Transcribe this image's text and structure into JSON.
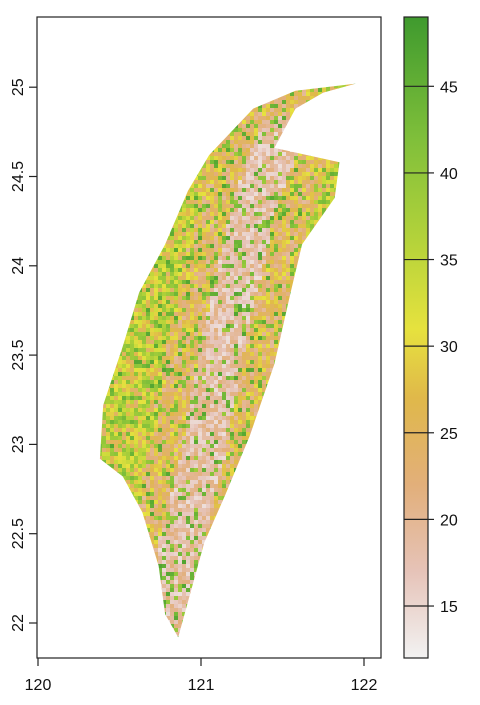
{
  "chart_data": {
    "type": "heatmap",
    "title": "",
    "xlabel": "",
    "ylabel": "",
    "xlim": [
      120.0,
      122.1
    ],
    "ylim": [
      21.8,
      25.4
    ],
    "x_ticks": [
      {
        "value": 120,
        "label": "120"
      },
      {
        "value": 121,
        "label": "121"
      },
      {
        "value": 122,
        "label": "122"
      }
    ],
    "y_ticks": [
      {
        "value": 22,
        "label": "22"
      },
      {
        "value": 22.5,
        "label": "22.5"
      },
      {
        "value": 23,
        "label": "23"
      },
      {
        "value": 23.5,
        "label": "23.5"
      },
      {
        "value": 24,
        "label": "24"
      },
      {
        "value": 24.5,
        "label": "24.5"
      },
      {
        "value": 25,
        "label": "25"
      }
    ],
    "colorbar": {
      "min": 12,
      "max": 49,
      "ticks": [
        {
          "value": 15,
          "label": "15"
        },
        {
          "value": 20,
          "label": "20"
        },
        {
          "value": 25,
          "label": "25"
        },
        {
          "value": 30,
          "label": "30"
        },
        {
          "value": 35,
          "label": "35"
        },
        {
          "value": 40,
          "label": "40"
        },
        {
          "value": 45,
          "label": "45"
        }
      ],
      "stops": [
        {
          "value": 12,
          "color": "#f2f2f2"
        },
        {
          "value": 17,
          "color": "#e6c3b8"
        },
        {
          "value": 22,
          "color": "#e2af7a"
        },
        {
          "value": 27,
          "color": "#e0b84a"
        },
        {
          "value": 31,
          "color": "#e6e23e"
        },
        {
          "value": 36,
          "color": "#b5d33a"
        },
        {
          "value": 42,
          "color": "#7fbf3a"
        },
        {
          "value": 49,
          "color": "#3f9a2e"
        }
      ]
    },
    "region_outline": [
      [
        121.95,
        25.02
      ],
      [
        121.75,
        24.97
      ],
      [
        121.58,
        24.88
      ],
      [
        121.45,
        24.66
      ],
      [
        121.85,
        24.58
      ],
      [
        121.82,
        24.38
      ],
      [
        121.62,
        24.12
      ],
      [
        121.55,
        23.85
      ],
      [
        121.45,
        23.45
      ],
      [
        121.3,
        23.05
      ],
      [
        121.15,
        22.72
      ],
      [
        121.02,
        22.45
      ],
      [
        120.92,
        22.12
      ],
      [
        120.86,
        21.92
      ],
      [
        120.78,
        22.05
      ],
      [
        120.74,
        22.32
      ],
      [
        120.64,
        22.62
      ],
      [
        120.52,
        22.82
      ],
      [
        120.38,
        22.92
      ],
      [
        120.4,
        23.22
      ],
      [
        120.52,
        23.55
      ],
      [
        120.62,
        23.85
      ],
      [
        120.78,
        24.12
      ],
      [
        120.92,
        24.42
      ],
      [
        121.05,
        24.62
      ],
      [
        121.32,
        24.88
      ],
      [
        121.58,
        24.98
      ]
    ],
    "ridge_axis": [
      [
        120.86,
        22.05
      ],
      [
        120.88,
        22.45
      ],
      [
        121.0,
        22.88
      ],
      [
        121.1,
        23.4
      ],
      [
        121.22,
        23.92
      ],
      [
        121.34,
        24.36
      ],
      [
        121.48,
        24.72
      ]
    ],
    "ridge_value": 14,
    "flank_value": 23,
    "edge_value": 38
  }
}
